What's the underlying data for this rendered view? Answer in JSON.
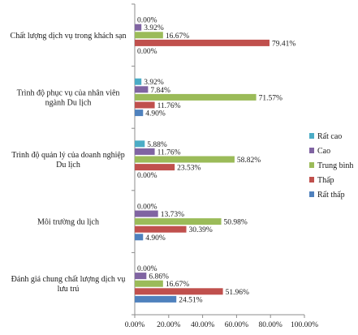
{
  "chart_data": {
    "type": "bar",
    "orientation": "horizontal",
    "title": "",
    "xlabel": "",
    "ylabel": "",
    "xlim": [
      0,
      100
    ],
    "x_ticks": [
      "0.00%",
      "20.00%",
      "40.00%",
      "60.00%",
      "80.00%",
      "100.00%"
    ],
    "grid": false,
    "legend_position": "right",
    "categories": [
      [
        "Chất lượng dịch vụ trong khách sạn"
      ],
      [
        "Trình độ phục vụ của nhân viên",
        "ngành Du lịch"
      ],
      [
        "Trình độ quản lý của doanh nghiệp",
        "Du lịch"
      ],
      [
        "Môi trường du lịch"
      ],
      [
        "Đánh giá chung chất lượng dịch vụ",
        "lưu trú"
      ]
    ],
    "series": [
      {
        "name": "Rất cao",
        "color": "#4bacc6",
        "values": [
          0.0,
          3.92,
          5.88,
          0.0,
          0.0
        ],
        "labels": [
          "0.00%",
          "3.92%",
          "5.88%",
          "0.00%",
          "0.00%"
        ]
      },
      {
        "name": "Cao",
        "color": "#8064a2",
        "values": [
          3.92,
          7.84,
          11.76,
          13.73,
          6.86
        ],
        "labels": [
          "3.92%",
          "7.84%",
          "11.76%",
          "13.73%",
          "6.86%"
        ]
      },
      {
        "name": "Trung bình",
        "color": "#9bbb59",
        "values": [
          16.67,
          71.57,
          58.82,
          50.98,
          16.67
        ],
        "labels": [
          "16.67%",
          "71.57%",
          "58.82%",
          "50.98%",
          "16.67%"
        ]
      },
      {
        "name": "Thấp",
        "color": "#c0504d",
        "values": [
          79.41,
          11.76,
          23.53,
          30.39,
          51.96
        ],
        "labels": [
          "79.41%",
          "11.76%",
          "23.53%",
          "30.39%",
          "51.96%"
        ]
      },
      {
        "name": "Rất thấp",
        "color": "#4f81bd",
        "values": [
          0.0,
          4.9,
          0.0,
          4.9,
          24.51
        ],
        "labels": [
          "0.00%",
          "4.90%",
          "0.00%",
          "4.90%",
          "24.51%"
        ]
      }
    ],
    "legend": [
      "Rất cao",
      "Cao",
      "Trung bình",
      "Thấp",
      "Rất thấp"
    ]
  }
}
